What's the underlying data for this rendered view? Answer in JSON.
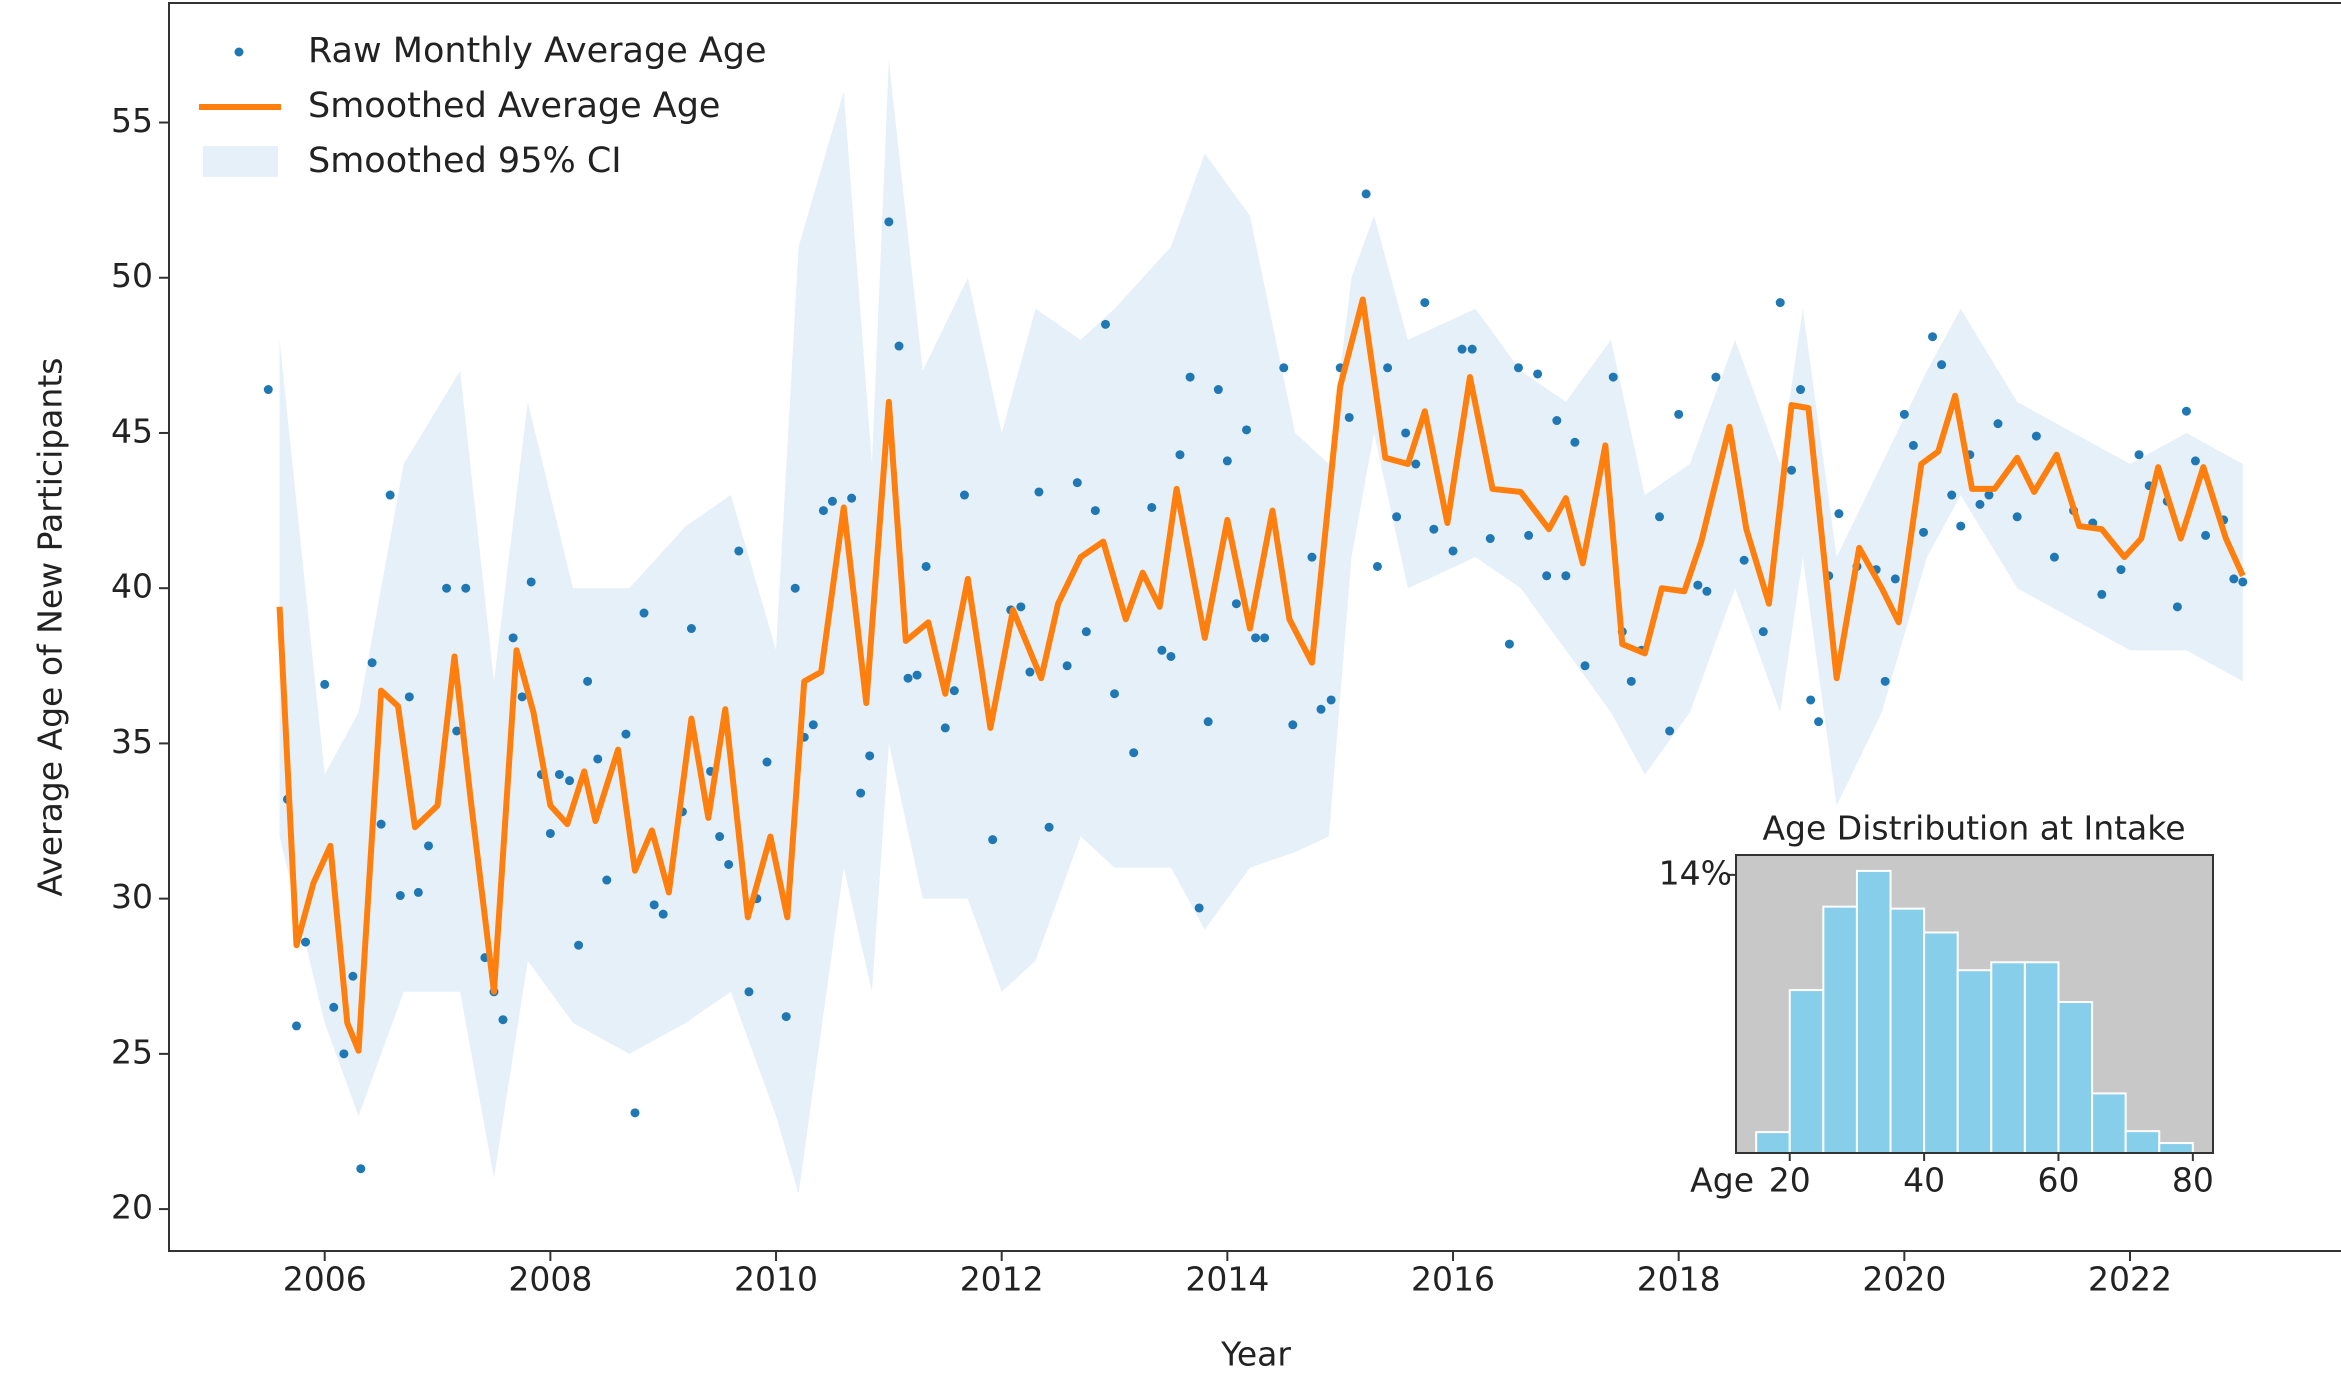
{
  "chart_data": [
    {
      "type": "line",
      "xlabel": "Year",
      "ylabel": "Average Age of New Participants",
      "xlim": [
        2004.62,
        2023.87
      ],
      "ylim": [
        18.65,
        58.85
      ],
      "xticks": [
        2006,
        2008,
        2010,
        2012,
        2014,
        2016,
        2018,
        2020,
        2022
      ],
      "yticks": [
        20,
        25,
        30,
        35,
        40,
        45,
        50,
        55
      ],
      "legend": "upper left",
      "series": [
        {
          "name": "Smoothed 95% CI",
          "type": "band",
          "color": "#e6f0f8",
          "x": [
            2005.6,
            2006.0,
            2006.3,
            2006.7,
            2007.2,
            2007.5,
            2007.8,
            2008.2,
            2008.7,
            2009.2,
            2009.6,
            2010.0,
            2010.2,
            2010.6,
            2010.85,
            2011.0,
            2011.3,
            2011.7,
            2012.0,
            2012.3,
            2012.7,
            2013.0,
            2013.5,
            2013.8,
            2014.2,
            2014.6,
            2014.9,
            2015.1,
            2015.3,
            2015.6,
            2016.2,
            2016.6,
            2017.0,
            2017.4,
            2017.7,
            2018.1,
            2018.5,
            2018.9,
            2019.1,
            2019.4,
            2019.8,
            2020.2,
            2020.5,
            2021.0,
            2021.5,
            2022.0,
            2022.5,
            2023.0
          ],
          "lower": [
            32,
            26,
            23,
            27,
            27,
            21,
            28,
            26,
            25,
            26,
            27,
            23,
            20.5,
            31,
            27,
            35,
            30,
            30,
            27,
            28,
            32,
            31,
            31,
            29,
            31,
            31.5,
            32,
            41,
            45,
            40,
            41,
            40,
            38,
            36,
            34,
            36,
            40,
            36,
            41,
            33,
            36,
            41,
            43,
            40,
            39,
            38,
            38,
            37
          ],
          "upper": [
            48,
            34,
            36,
            44,
            47,
            37,
            46,
            40,
            40,
            42,
            43,
            38,
            51,
            56,
            44,
            57,
            47,
            50,
            45,
            49,
            48,
            49,
            51,
            54,
            52,
            45,
            44,
            50,
            52,
            48,
            49,
            47,
            46,
            48,
            43,
            44,
            48,
            44,
            49,
            41,
            44,
            47,
            49,
            46,
            45,
            44,
            45,
            44
          ]
        },
        {
          "name": "Raw Monthly Average Age",
          "type": "scatter",
          "color": "#1f77b4",
          "x": [
            2005.5,
            2005.67,
            2005.75,
            2005.83,
            2006.0,
            2006.08,
            2006.17,
            2006.25,
            2006.32,
            2006.42,
            2006.5,
            2006.58,
            2006.67,
            2006.75,
            2006.83,
            2006.92,
            2007.08,
            2007.17,
            2007.25,
            2007.42,
            2007.5,
            2007.58,
            2007.67,
            2007.75,
            2007.83,
            2007.92,
            2008.0,
            2008.08,
            2008.17,
            2008.25,
            2008.33,
            2008.42,
            2008.5,
            2008.67,
            2008.75,
            2008.83,
            2008.92,
            2009.0,
            2009.17,
            2009.25,
            2009.42,
            2009.5,
            2009.58,
            2009.67,
            2009.76,
            2009.83,
            2009.92,
            2010.09,
            2010.17,
            2010.25,
            2010.33,
            2010.42,
            2010.5,
            2010.67,
            2010.75,
            2010.83,
            2011.0,
            2011.09,
            2011.17,
            2011.25,
            2011.33,
            2011.5,
            2011.58,
            2011.67,
            2011.92,
            2012.08,
            2012.17,
            2012.25,
            2012.33,
            2012.42,
            2012.58,
            2012.67,
            2012.75,
            2012.83,
            2012.92,
            2013.0,
            2013.17,
            2013.33,
            2013.42,
            2013.5,
            2013.58,
            2013.67,
            2013.75,
            2013.83,
            2013.92,
            2014.0,
            2014.08,
            2014.17,
            2014.25,
            2014.33,
            2014.5,
            2014.58,
            2014.75,
            2014.83,
            2014.92,
            2015.0,
            2015.08,
            2015.23,
            2015.33,
            2015.42,
            2015.5,
            2015.58,
            2015.67,
            2015.75,
            2015.83,
            2016.0,
            2016.08,
            2016.17,
            2016.33,
            2016.5,
            2016.58,
            2016.67,
            2016.75,
            2016.83,
            2016.92,
            2017.0,
            2017.08,
            2017.17,
            2017.42,
            2017.5,
            2017.58,
            2017.67,
            2017.83,
            2017.92,
            2018.0,
            2018.17,
            2018.25,
            2018.33,
            2018.58,
            2018.75,
            2018.9,
            2019.0,
            2019.08,
            2019.17,
            2019.24,
            2019.33,
            2019.42,
            2019.58,
            2019.75,
            2019.83,
            2019.92,
            2020.0,
            2020.08,
            2020.17,
            2020.25,
            2020.33,
            2020.42,
            2020.5,
            2020.58,
            2020.67,
            2020.75,
            2020.83,
            2021.0,
            2021.17,
            2021.33,
            2021.5,
            2021.67,
            2021.75,
            2021.92,
            2022.08,
            2022.17,
            2022.33,
            2022.42,
            2022.5,
            2022.58,
            2022.67,
            2022.83,
            2022.92,
            2023.0
          ],
          "values": [
            46.4,
            33.2,
            25.9,
            28.6,
            36.9,
            26.5,
            25.0,
            27.5,
            21.3,
            37.6,
            32.4,
            43.0,
            30.1,
            36.5,
            30.2,
            31.7,
            40.0,
            35.4,
            40.0,
            28.1,
            27.0,
            26.1,
            38.4,
            36.5,
            40.2,
            34.0,
            32.1,
            34.0,
            33.8,
            28.5,
            37.0,
            34.5,
            30.6,
            35.3,
            23.1,
            39.2,
            29.8,
            29.5,
            32.8,
            38.7,
            34.1,
            32.0,
            31.1,
            41.2,
            27.0,
            30.0,
            34.4,
            26.2,
            40.0,
            35.2,
            35.6,
            42.5,
            42.8,
            42.9,
            33.4,
            34.6,
            51.8,
            47.8,
            37.1,
            37.2,
            40.7,
            35.5,
            36.7,
            43.0,
            31.9,
            39.3,
            39.4,
            37.3,
            43.1,
            32.3,
            37.5,
            43.4,
            38.6,
            42.5,
            48.5,
            36.6,
            34.7,
            42.6,
            38.0,
            37.8,
            44.3,
            46.8,
            29.7,
            35.7,
            46.4,
            44.1,
            39.5,
            45.1,
            38.4,
            38.4,
            47.1,
            35.6,
            41.0,
            36.1,
            36.4,
            47.1,
            45.5,
            52.7,
            40.7,
            47.1,
            42.3,
            45.0,
            44.0,
            49.2,
            41.9,
            41.2,
            47.7,
            47.7,
            41.6,
            38.2,
            47.1,
            41.7,
            46.9,
            40.4,
            45.4,
            40.4,
            44.7,
            37.5,
            46.8,
            38.6,
            37.0,
            38.0,
            42.3,
            35.4,
            45.6,
            40.1,
            39.9,
            46.8,
            40.9,
            38.6,
            49.2,
            43.8,
            46.4,
            36.4,
            35.7,
            40.4,
            42.4,
            40.7,
            40.6,
            37.0,
            40.3,
            45.6,
            44.6,
            41.8,
            48.1,
            47.2,
            43.0,
            42.0,
            44.3,
            42.7,
            43.0,
            45.3,
            42.3,
            44.9,
            41.0,
            42.5,
            42.1,
            39.8,
            40.6,
            44.3,
            43.3,
            42.8,
            39.4,
            45.7,
            44.1,
            41.7,
            42.2,
            40.3,
            40.2
          ]
        },
        {
          "name": "Smoothed Average Age",
          "type": "line",
          "color": "#ff7f0e",
          "x": [
            2005.6,
            2005.75,
            2005.9,
            2006.05,
            2006.2,
            2006.3,
            2006.5,
            2006.65,
            2006.8,
            2007.0,
            2007.15,
            2007.3,
            2007.5,
            2007.7,
            2007.85,
            2008.0,
            2008.15,
            2008.3,
            2008.4,
            2008.6,
            2008.75,
            2008.9,
            2009.05,
            2009.25,
            2009.4,
            2009.55,
            2009.75,
            2009.95,
            2010.1,
            2010.25,
            2010.4,
            2010.6,
            2010.8,
            2011.0,
            2011.15,
            2011.35,
            2011.5,
            2011.7,
            2011.9,
            2012.1,
            2012.35,
            2012.5,
            2012.7,
            2012.9,
            2013.1,
            2013.25,
            2013.4,
            2013.55,
            2013.8,
            2014.0,
            2014.2,
            2014.4,
            2014.55,
            2014.75,
            2015.0,
            2015.2,
            2015.4,
            2015.6,
            2015.75,
            2015.95,
            2016.15,
            2016.35,
            2016.6,
            2016.85,
            2017.0,
            2017.15,
            2017.35,
            2017.5,
            2017.7,
            2017.85,
            2018.05,
            2018.2,
            2018.45,
            2018.6,
            2018.8,
            2019.0,
            2019.15,
            2019.4,
            2019.6,
            2019.8,
            2019.95,
            2020.15,
            2020.3,
            2020.45,
            2020.6,
            2020.8,
            2021.0,
            2021.15,
            2021.35,
            2021.55,
            2021.75,
            2021.95,
            2022.1,
            2022.25,
            2022.45,
            2022.65,
            2022.85,
            2023.0
          ],
          "values": [
            39.4,
            28.5,
            30.5,
            31.7,
            26,
            25.1,
            36.7,
            36.2,
            32.3,
            33,
            37.8,
            33,
            27,
            38,
            36,
            33,
            32.4,
            34.1,
            32.5,
            34.8,
            30.9,
            32.2,
            30.2,
            35.8,
            32.6,
            36.1,
            29.4,
            32,
            29.4,
            37,
            37.3,
            42.6,
            36.3,
            46,
            38.3,
            38.9,
            36.6,
            40.3,
            35.5,
            39.3,
            37.1,
            39.5,
            41,
            41.5,
            39,
            40.5,
            39.4,
            43.2,
            38.4,
            42.2,
            38.7,
            42.5,
            39,
            37.6,
            46.5,
            49.3,
            44.2,
            44,
            45.7,
            42.1,
            46.8,
            43.2,
            43.1,
            41.9,
            42.9,
            40.8,
            44.6,
            38.2,
            37.9,
            40,
            39.9,
            41.5,
            45.2,
            41.9,
            39.5,
            45.9,
            45.8,
            37.1,
            41.3,
            40,
            38.9,
            44,
            44.4,
            46.2,
            43.2,
            43.2,
            44.2,
            43.1,
            44.3,
            42,
            41.9,
            41,
            41.6,
            43.9,
            41.6,
            43.9,
            41.6,
            40.4
          ]
        }
      ]
    },
    {
      "type": "histogram",
      "title": "Age Distribution at Intake",
      "xlabel": "Age",
      "bins": [
        15,
        20,
        25,
        30,
        35,
        40,
        45,
        50,
        55,
        60,
        65,
        70,
        75,
        80
      ],
      "values": [
        1.05,
        8.2,
        12.4,
        14.2,
        12.3,
        11.1,
        9.2,
        9.6,
        9.6,
        7.6,
        3.0,
        1.1,
        0.5
      ],
      "color": "#87ceeb",
      "background": "#c8c8c8",
      "xlim": [
        12,
        83
      ],
      "ylim": [
        0,
        15
      ],
      "xticks": [
        20,
        40,
        60,
        80
      ],
      "yticks": [
        {
          "value": 14,
          "label": "14%"
        }
      ]
    }
  ]
}
